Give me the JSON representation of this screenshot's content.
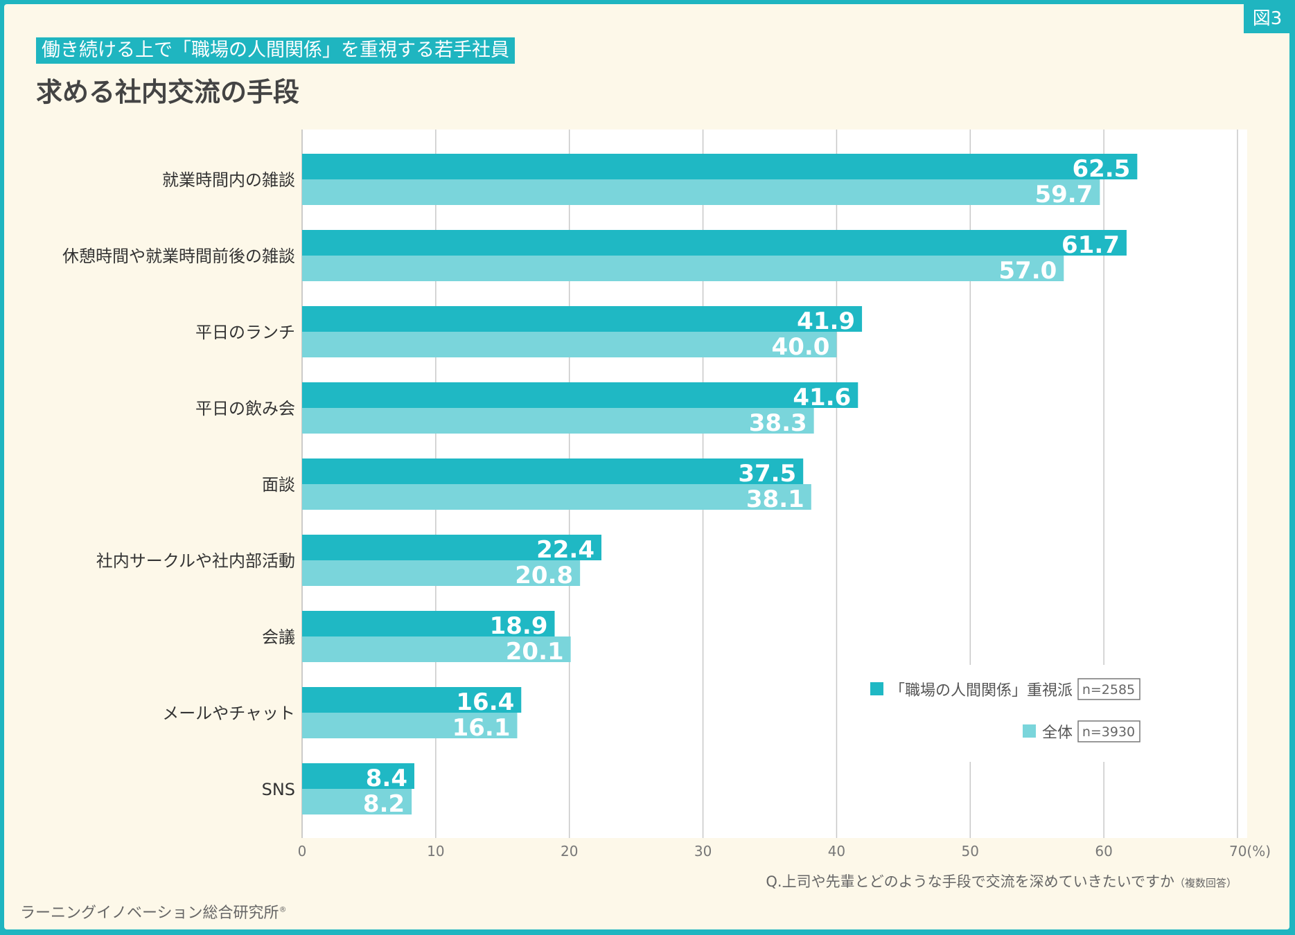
{
  "badge": "図3",
  "subtitle": "働き続ける上で「職場の人間関係」を重視する若手社員",
  "title": "求める社内交流の手段",
  "footer": "ラーニングイノベーション総合研究所",
  "footer_mark": "®",
  "colors": {
    "series1": "#1fb8c4",
    "series2": "#7ad5db",
    "frame": "#1fb5c0",
    "background": "#fdf8e9"
  },
  "chart_data": {
    "type": "bar",
    "orientation": "horizontal",
    "categories": [
      "就業時間内の雑談",
      "休憩時間や就業時間前後の雑談",
      "平日のランチ",
      "平日の飲み会",
      "面談",
      "社内サークルや社内部活動",
      "会議",
      "メールやチャット",
      "SNS"
    ],
    "series": [
      {
        "name": "「職場の人間関係」重視派",
        "n": "n=2585",
        "values": [
          62.5,
          61.7,
          41.9,
          41.6,
          37.5,
          22.4,
          18.9,
          16.4,
          8.4
        ]
      },
      {
        "name": "全体",
        "n": "n=3930",
        "values": [
          59.7,
          57.0,
          40.0,
          38.3,
          38.1,
          20.8,
          20.1,
          16.1,
          8.2
        ]
      }
    ],
    "xlim": [
      0,
      70
    ],
    "xticks": [
      "0",
      "10",
      "20",
      "30",
      "40",
      "50",
      "60",
      "70(%)"
    ],
    "xlabel": "Q.上司や先輩とどのような手段で交流を深めていきたいですか",
    "xlabel_note": "（複数回答）",
    "grid": true,
    "legend_placement": "bottom-right"
  }
}
